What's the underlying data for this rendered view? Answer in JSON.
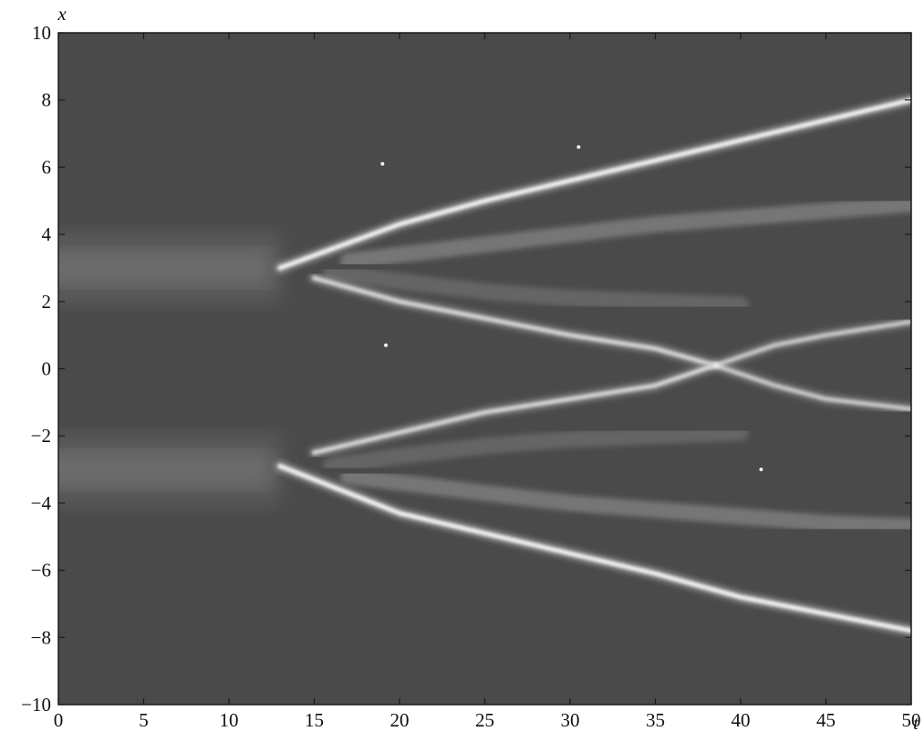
{
  "chart_data": {
    "type": "heatmap",
    "title": "",
    "xlabel": "t",
    "ylabel": "x",
    "xlim": [
      0,
      50
    ],
    "ylim": [
      -10,
      10
    ],
    "x_ticks": [
      "0",
      "5",
      "10",
      "15",
      "20",
      "25",
      "30",
      "35",
      "40",
      "45",
      "50"
    ],
    "y_ticks": [
      "10",
      "8",
      "6",
      "4",
      "2",
      "0",
      "−2",
      "−4",
      "−6",
      "−8",
      "−10"
    ],
    "colormap": "grayscale",
    "background_color": "#4a4a4a",
    "trace_color": "#f2f2f2",
    "initial_bands": [
      {
        "x_center": 3.0,
        "t_start": 0,
        "t_end": 13
      },
      {
        "x_center": -3.0,
        "t_start": 0,
        "t_end": 13
      }
    ],
    "series": [
      {
        "t": [
          13,
          20,
          25,
          30,
          35,
          40,
          45,
          50
        ],
        "x": [
          3.0,
          4.3,
          5.0,
          5.6,
          6.2,
          6.8,
          7.4,
          8.0
        ],
        "intensity": 1.0
      },
      {
        "t": [
          13,
          20,
          25,
          30,
          35,
          40,
          45,
          50
        ],
        "x": [
          -2.9,
          -4.3,
          -4.9,
          -5.5,
          -6.1,
          -6.8,
          -7.3,
          -7.8
        ],
        "intensity": 1.0
      },
      {
        "t": [
          15,
          20,
          25,
          30,
          35,
          38.5
        ],
        "x": [
          2.7,
          2.0,
          1.5,
          1.0,
          0.6,
          0.1
        ],
        "intensity": 0.75
      },
      {
        "t": [
          15,
          20,
          25,
          30,
          35,
          38.5
        ],
        "x": [
          -2.5,
          -1.9,
          -1.3,
          -0.9,
          -0.5,
          0.1
        ],
        "intensity": 0.75
      },
      {
        "t": [
          38.5,
          42,
          45,
          50
        ],
        "x": [
          0.1,
          0.7,
          1.0,
          1.4
        ],
        "intensity": 0.65
      },
      {
        "t": [
          38.5,
          42,
          45,
          50
        ],
        "x": [
          0.1,
          -0.5,
          -0.9,
          -1.2
        ],
        "intensity": 0.65
      },
      {
        "t": [
          17,
          25,
          30,
          35,
          40,
          45,
          50
        ],
        "x": [
          3.2,
          3.7,
          4.0,
          4.3,
          4.5,
          4.7,
          4.9
        ],
        "intensity": 0.3
      },
      {
        "t": [
          17,
          25,
          30,
          35,
          40,
          45,
          50
        ],
        "x": [
          -3.2,
          -3.7,
          -4.0,
          -4.2,
          -4.4,
          -4.6,
          -4.7
        ],
        "intensity": 0.3
      },
      {
        "t": [
          16,
          20,
          25,
          30,
          35,
          40
        ],
        "x": [
          2.9,
          2.6,
          2.3,
          2.1,
          2.0,
          1.9
        ],
        "intensity": 0.18
      },
      {
        "t": [
          16,
          20,
          25,
          30,
          35,
          40
        ],
        "x": [
          -2.9,
          -2.6,
          -2.3,
          -2.1,
          -2.0,
          -1.9
        ],
        "intensity": 0.18
      }
    ],
    "isolated_points": [
      {
        "t": 19.0,
        "x": 6.1
      },
      {
        "t": 30.5,
        "x": 6.6
      },
      {
        "t": 19.2,
        "x": 0.7
      },
      {
        "t": 41.2,
        "x": -3.0
      }
    ],
    "grid": false
  }
}
